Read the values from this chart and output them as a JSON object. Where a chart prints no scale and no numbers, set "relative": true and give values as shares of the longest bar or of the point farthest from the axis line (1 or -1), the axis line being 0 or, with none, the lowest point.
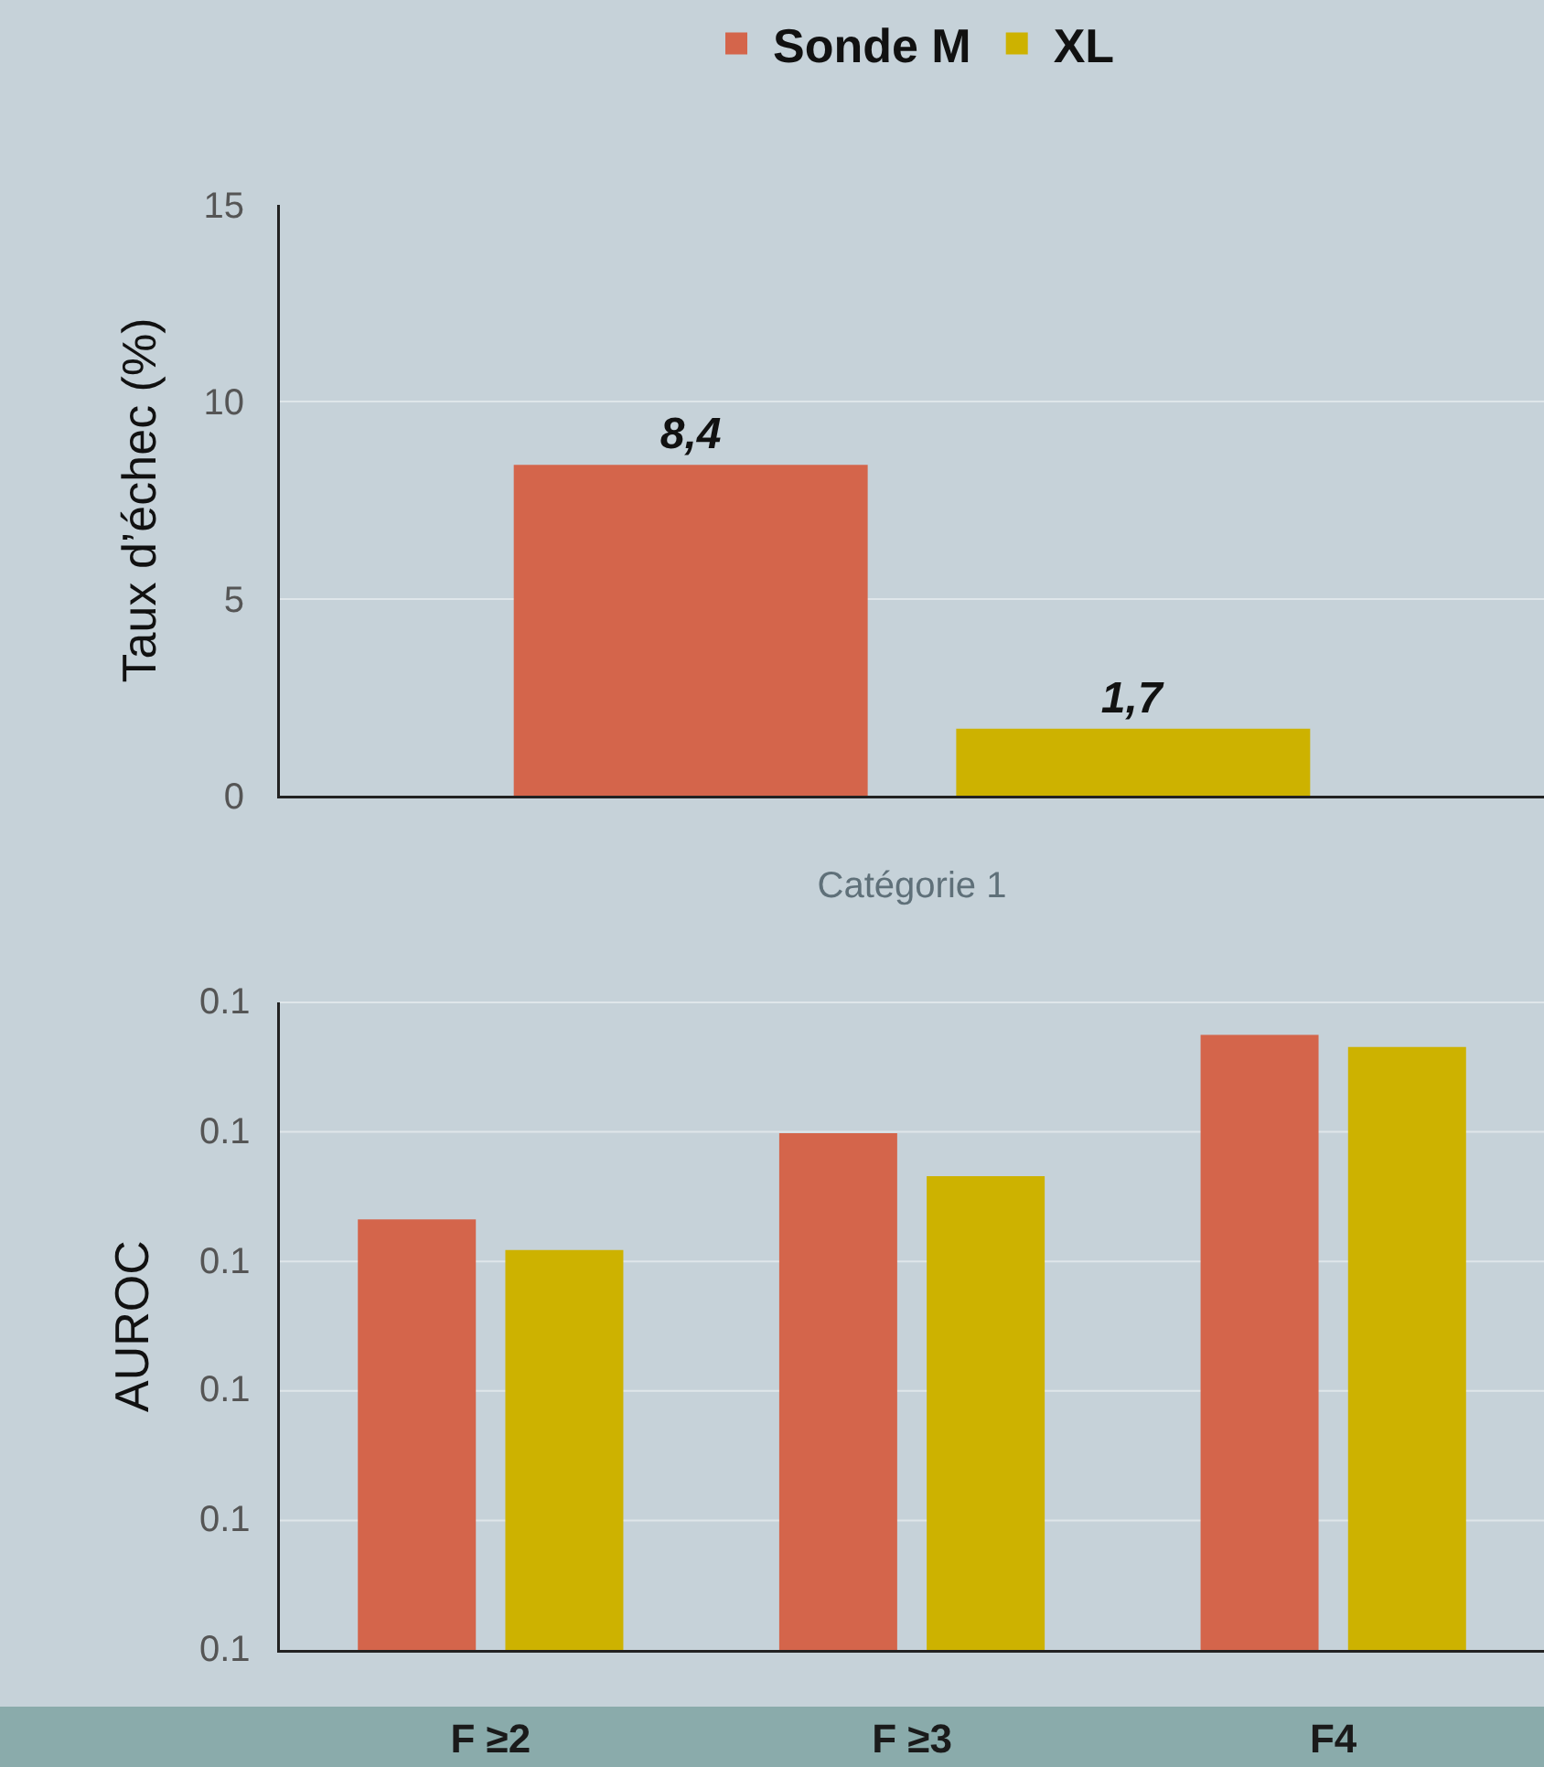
{
  "chart_data": [
    {
      "type": "bar",
      "ylabel": "Taux d’échec (%)",
      "categories": [
        "Catégorie 1"
      ],
      "series": [
        {
          "name": "Sonde M",
          "color": "#d4654b",
          "values": [
            8.4
          ],
          "value_labels": [
            "8,4"
          ]
        },
        {
          "name": "XL",
          "color": "#cdb200",
          "values": [
            1.7
          ],
          "value_labels": [
            "1,7"
          ]
        }
      ],
      "ylim": [
        0,
        15
      ],
      "yticks": [
        0,
        5,
        10,
        15
      ],
      "grid": "y",
      "legend": "top"
    },
    {
      "type": "bar",
      "ylabel": "AUROC",
      "relative": true,
      "categories": [
        "F ≥2",
        "F ≥3",
        "F4"
      ],
      "series": [
        {
          "color": "#d4654b",
          "values": [
            0.7,
            0.84,
            1
          ]
        },
        {
          "color": "#cdb200",
          "values": [
            0.65,
            0.77,
            0.98
          ]
        }
      ],
      "annotations": [
        "0.1",
        "0.1",
        "0.1",
        "0.1",
        "0.1",
        "0.1"
      ],
      "grid": "y"
    }
  ]
}
